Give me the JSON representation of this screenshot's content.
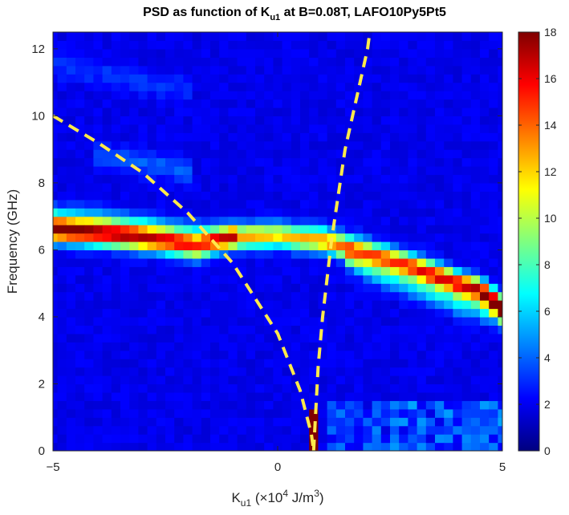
{
  "chart_data": {
    "type": "heatmap",
    "title": "PSD as function of K",
    "title_sub": "u1",
    "title_rest": " at B=0.08T, LAFO10Py5Pt5",
    "xlabel": "K",
    "xlabel_sub": "u1",
    "xlabel_rest_pre": " (",
    "xlabel_times": "×",
    "xlabel_ten": "10",
    "xlabel_exp": "4",
    "xlabel_units": " J/m",
    "xlabel_units_exp": "3",
    "xlabel_close": ")",
    "ylabel": "Frequency (GHz)",
    "xlim": [
      -5,
      5
    ],
    "ylim": [
      0,
      12.5
    ],
    "xticks": [
      -5,
      0,
      5
    ],
    "yticks": [
      0,
      2,
      4,
      6,
      8,
      10,
      12
    ],
    "colormap": "jet",
    "colorbar": {
      "range": [
        0,
        18
      ],
      "ticks": [
        0,
        2,
        4,
        6,
        8,
        10,
        12,
        14,
        16,
        18
      ]
    },
    "grid": false,
    "series": [
      {
        "kind": "spectral-branch",
        "x": [
          -5,
          -4,
          -3,
          -2,
          -1.8,
          -1,
          0,
          0.5,
          1,
          1.5,
          2,
          3,
          4,
          4.5,
          5
        ],
        "y": [
          6.6,
          6.5,
          6.35,
          6.15,
          6.1,
          6.4,
          6.45,
          6.35,
          6.3,
          6.1,
          5.9,
          5.5,
          5.0,
          4.8,
          4.3
        ]
      },
      {
        "kind": "spectral-branch",
        "x": [
          -5,
          -4,
          -3,
          -2,
          -1
        ],
        "y": [
          7.0,
          6.9,
          6.7,
          6.5,
          6.4
        ]
      },
      {
        "kind": "spectral-branch",
        "x": [
          1.5,
          2,
          3,
          4,
          5
        ],
        "y": [
          5.8,
          5.4,
          4.9,
          4.4,
          4.05
        ]
      },
      {
        "kind": "spectral-branch",
        "x": [
          -4,
          -3,
          -2
        ],
        "y": [
          8.8,
          8.6,
          8.35
        ]
      },
      {
        "kind": "spectral-branch",
        "x": [
          -5,
          -4,
          -3,
          -2
        ],
        "y": [
          11.5,
          11.3,
          11.0,
          10.8
        ]
      },
      {
        "kind": "theory-curve-left",
        "style": "dashed",
        "color": "#ffe94a",
        "x": [
          -5,
          -4,
          -3,
          -2,
          -1,
          0,
          0.5,
          0.75,
          0.8
        ],
        "y": [
          10.0,
          9.2,
          8.3,
          7.1,
          5.6,
          3.5,
          1.8,
          0.5,
          0.0
        ]
      },
      {
        "kind": "theory-curve-right",
        "style": "dashed",
        "color": "#ffe94a",
        "x": [
          0.8,
          0.9,
          1.0,
          1.2,
          1.5,
          2.0,
          2.05
        ],
        "y": [
          0.0,
          2.5,
          4.0,
          6.3,
          9.0,
          12.0,
          12.5
        ]
      }
    ]
  }
}
